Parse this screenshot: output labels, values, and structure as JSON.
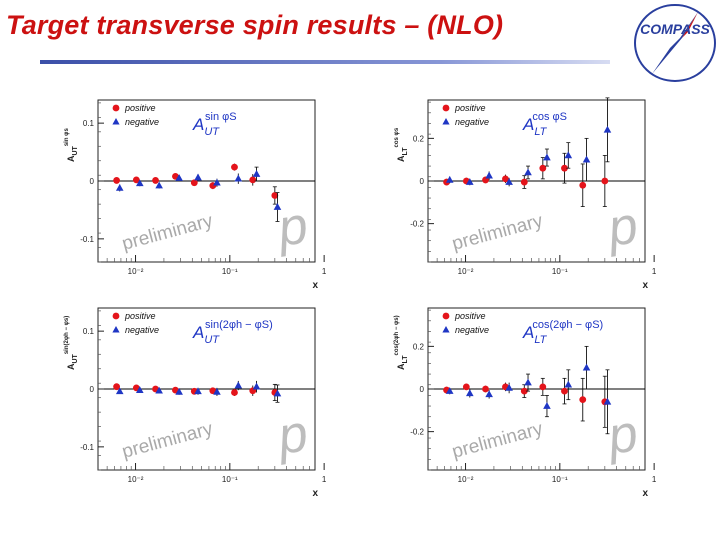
{
  "slide": {
    "title": "Target transverse spin results – (NLO)",
    "logo_text": "COMPASS",
    "accent_color": "#cc1111",
    "rule_color": "#3b4fa8"
  },
  "colors": {
    "positive": "#e4141b",
    "negative": "#1f36c4"
  },
  "chart_data": [
    {
      "type": "scatter",
      "title": "A_UT^{sin φS}",
      "title_parts": {
        "base": "A",
        "sub": "UT",
        "sup": "sin φS"
      },
      "ylabel_main": "A",
      "ylabel_sub": "UT",
      "ylabel_sup": "sin φs",
      "xlabel": "x",
      "xscale": "log",
      "xlim": [
        0.004,
        0.8
      ],
      "ylim": [
        -0.14,
        0.14
      ],
      "yticks": [
        -0.1,
        0,
        0.1
      ],
      "ytick_labels": [
        "-0.1",
        "0",
        "0.1"
      ],
      "xticks": [
        0.01,
        0.1,
        1
      ],
      "xtick_labels": [
        "10⁻²",
        "10⁻¹",
        "1"
      ],
      "legend": [
        "positive",
        "negative"
      ],
      "legend_position": "top-left",
      "watermark": "preliminary",
      "series": [
        {
          "name": "positive",
          "x": [
            0.0063,
            0.0102,
            0.0163,
            0.0265,
            0.042,
            0.066,
            0.112,
            0.175,
            0.3
          ],
          "y": [
            0.001,
            0.002,
            0.001,
            0.008,
            -0.003,
            -0.008,
            0.024,
            0.002,
            -0.025
          ],
          "err": [
            0.004,
            0.004,
            0.004,
            0.004,
            0.005,
            0.006,
            0.006,
            0.01,
            0.015
          ]
        },
        {
          "name": "negative",
          "x": [
            0.0068,
            0.0111,
            0.0178,
            0.029,
            0.046,
            0.073,
            0.123,
            0.192,
            0.32
          ],
          "y": [
            -0.012,
            -0.004,
            -0.008,
            0.005,
            0.006,
            -0.003,
            0.004,
            0.012,
            -0.045
          ],
          "err": [
            0.006,
            0.005,
            0.005,
            0.005,
            0.006,
            0.007,
            0.009,
            0.012,
            0.025
          ]
        }
      ]
    },
    {
      "type": "scatter",
      "title": "A_LT^{cos φS}",
      "title_parts": {
        "base": "A",
        "sub": "LT",
        "sup": "cos φS"
      },
      "ylabel_main": "A",
      "ylabel_sub": "LT",
      "ylabel_sup": "cos φs",
      "xlabel": "x",
      "xscale": "log",
      "xlim": [
        0.004,
        0.8
      ],
      "ylim": [
        -0.38,
        0.38
      ],
      "yticks": [
        -0.2,
        0,
        0.2
      ],
      "ytick_labels": [
        "-0.2",
        "0",
        "0.2"
      ],
      "xticks": [
        0.01,
        0.1,
        1
      ],
      "xtick_labels": [
        "10⁻²",
        "10⁻¹",
        "1"
      ],
      "legend": [
        "positive",
        "negative"
      ],
      "legend_position": "top-left",
      "watermark": "preliminary",
      "series": [
        {
          "name": "positive",
          "x": [
            0.0063,
            0.0102,
            0.0163,
            0.0265,
            0.042,
            0.066,
            0.112,
            0.175,
            0.3
          ],
          "y": [
            -0.005,
            0.0,
            0.005,
            0.01,
            -0.005,
            0.06,
            0.06,
            -0.02,
            0.0
          ],
          "err": [
            0.015,
            0.015,
            0.015,
            0.02,
            0.03,
            0.05,
            0.07,
            0.1,
            0.12
          ]
        },
        {
          "name": "negative",
          "x": [
            0.0068,
            0.0111,
            0.0178,
            0.029,
            0.046,
            0.073,
            0.123,
            0.192,
            0.32
          ],
          "y": [
            0.005,
            -0.005,
            0.025,
            -0.005,
            0.04,
            0.11,
            0.12,
            0.1,
            0.24
          ],
          "err": [
            0.015,
            0.015,
            0.02,
            0.02,
            0.03,
            0.04,
            0.06,
            0.1,
            0.15
          ]
        }
      ]
    },
    {
      "type": "scatter",
      "title": "A_UT^{sin(2φh − φS)}",
      "title_parts": {
        "base": "A",
        "sub": "UT",
        "sup": "sin(2φh − φS)"
      },
      "ylabel_main": "A",
      "ylabel_sub": "UT",
      "ylabel_sup": "sin(2φh − φs)",
      "xlabel": "x",
      "xscale": "log",
      "xlim": [
        0.004,
        0.8
      ],
      "ylim": [
        -0.14,
        0.14
      ],
      "yticks": [
        -0.1,
        0,
        0.1
      ],
      "ytick_labels": [
        "-0.1",
        "0",
        "0.1"
      ],
      "xticks": [
        0.01,
        0.1,
        1
      ],
      "xtick_labels": [
        "10⁻²",
        "10⁻¹",
        "1"
      ],
      "legend": [
        "positive",
        "negative"
      ],
      "legend_position": "top-left",
      "watermark": "preliminary",
      "series": [
        {
          "name": "positive",
          "x": [
            0.0063,
            0.0102,
            0.0163,
            0.0265,
            0.042,
            0.066,
            0.112,
            0.175,
            0.3
          ],
          "y": [
            0.004,
            0.002,
            0.0,
            -0.002,
            -0.004,
            -0.003,
            -0.006,
            -0.003,
            -0.006
          ],
          "err": [
            0.003,
            0.003,
            0.003,
            0.004,
            0.004,
            0.005,
            0.006,
            0.009,
            0.014
          ]
        },
        {
          "name": "negative",
          "x": [
            0.0068,
            0.0111,
            0.0178,
            0.029,
            0.046,
            0.073,
            0.123,
            0.192,
            0.32
          ],
          "y": [
            -0.004,
            -0.002,
            -0.003,
            -0.005,
            -0.004,
            -0.005,
            0.006,
            0.004,
            -0.008
          ],
          "err": [
            0.004,
            0.004,
            0.004,
            0.005,
            0.006,
            0.007,
            0.008,
            0.01,
            0.015
          ]
        }
      ]
    },
    {
      "type": "scatter",
      "title": "A_LT^{cos(2φh − φS)}",
      "title_parts": {
        "base": "A",
        "sub": "LT",
        "sup": "cos(2φh − φS)"
      },
      "ylabel_main": "A",
      "ylabel_sub": "LT",
      "ylabel_sup": "cos(2φh − φs)",
      "xlabel": "x",
      "xscale": "log",
      "xlim": [
        0.004,
        0.8
      ],
      "ylim": [
        -0.38,
        0.38
      ],
      "yticks": [
        -0.2,
        0,
        0.2
      ],
      "ytick_labels": [
        "-0.2",
        "0",
        "0.2"
      ],
      "xticks": [
        0.01,
        0.1,
        1
      ],
      "xtick_labels": [
        "10⁻²",
        "10⁻¹",
        "1"
      ],
      "legend": [
        "positive",
        "negative"
      ],
      "legend_position": "top-left",
      "watermark": "preliminary",
      "series": [
        {
          "name": "positive",
          "x": [
            0.0063,
            0.0102,
            0.0163,
            0.0265,
            0.042,
            0.066,
            0.112,
            0.175,
            0.3
          ],
          "y": [
            -0.005,
            0.01,
            0.0,
            0.01,
            -0.01,
            0.01,
            -0.01,
            -0.05,
            -0.06
          ],
          "err": [
            0.015,
            0.015,
            0.015,
            0.02,
            0.03,
            0.04,
            0.06,
            0.1,
            0.12
          ]
        },
        {
          "name": "negative",
          "x": [
            0.0068,
            0.0111,
            0.0178,
            0.029,
            0.046,
            0.073,
            0.123,
            0.192,
            0.32
          ],
          "y": [
            -0.01,
            -0.02,
            -0.025,
            0.005,
            0.03,
            -0.08,
            0.02,
            0.1,
            -0.06
          ],
          "err": [
            0.015,
            0.02,
            0.02,
            0.025,
            0.04,
            0.05,
            0.07,
            0.1,
            0.15
          ]
        }
      ]
    }
  ]
}
